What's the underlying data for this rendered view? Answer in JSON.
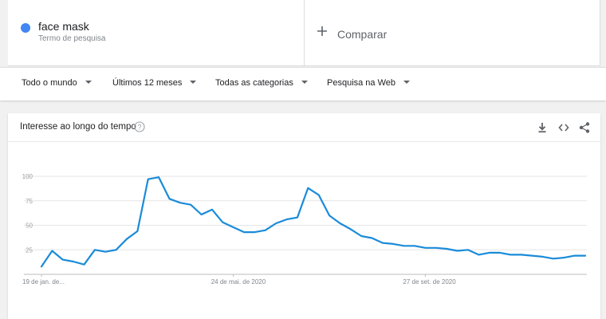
{
  "term": {
    "name": "face mask",
    "subtitle": "Termo de pesquisa",
    "color": "#4285f4"
  },
  "compare": {
    "label": "Comparar"
  },
  "filters": [
    {
      "label": "Todo o mundo"
    },
    {
      "label": "Últimos 12 meses"
    },
    {
      "label": "Todas as categorias"
    },
    {
      "label": "Pesquisa na Web"
    }
  ],
  "card": {
    "title": "Interesse ao longo do tempo",
    "icons": [
      "help-icon",
      "download-icon",
      "embed-icon",
      "share-icon"
    ]
  },
  "chart_data": {
    "type": "line",
    "ylim": [
      0,
      100
    ],
    "yticks": [
      25,
      50,
      75,
      100
    ],
    "grid": true,
    "xlabels": [
      "19 de jan. de...",
      "24 de mai. de 2020",
      "27 de set. de 2020"
    ],
    "xlabel_index": [
      0,
      18,
      36
    ],
    "series": [
      {
        "color": "#1a8bd9",
        "values": [
          8,
          24,
          15,
          13,
          10,
          25,
          23,
          25,
          36,
          44,
          97,
          99,
          77,
          73,
          71,
          61,
          66,
          53,
          48,
          43,
          43,
          45,
          52,
          56,
          58,
          88,
          81,
          60,
          52,
          46,
          39,
          37,
          32,
          31,
          29,
          29,
          27,
          27,
          26,
          24,
          25,
          20,
          22,
          22,
          20,
          20,
          19,
          18,
          16,
          17,
          19,
          19
        ]
      }
    ]
  }
}
